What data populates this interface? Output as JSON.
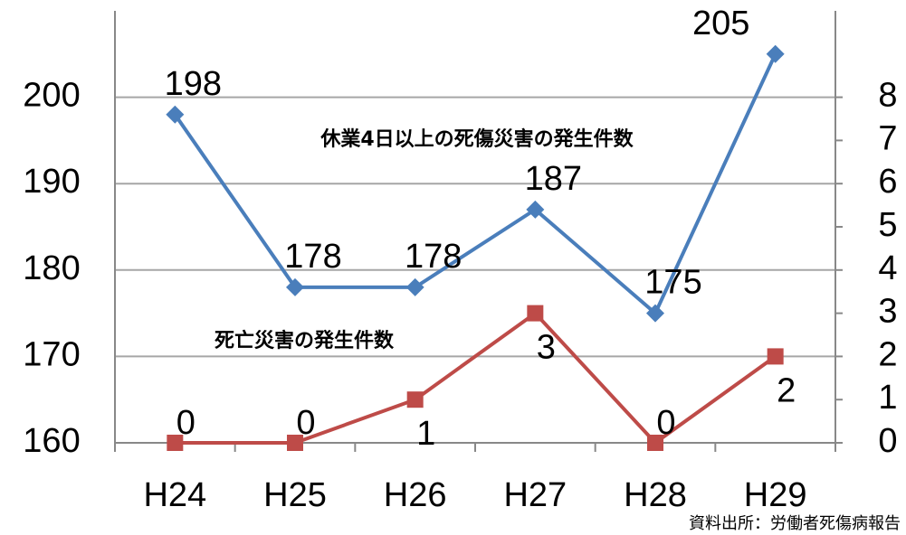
{
  "chart_data": {
    "type": "line",
    "categories": [
      "H24",
      "H25",
      "H26",
      "H27",
      "H28",
      "H29"
    ],
    "series": [
      {
        "name": "休業4日以上の死傷災害の発生件数",
        "color": "#4a7ebb",
        "values": [
          198,
          178,
          178,
          187,
          175,
          205
        ]
      },
      {
        "name": "死亡災害の発生件数",
        "color": "#be4b48",
        "values": [
          0,
          0,
          1,
          3,
          0,
          2
        ],
        "axis": "y2"
      }
    ],
    "ylim": [
      160,
      210
    ],
    "yticks": [
      160,
      170,
      180,
      190,
      200
    ],
    "y2lim": [
      0,
      10
    ],
    "y2ticks": [
      0,
      1,
      2,
      3,
      4,
      5,
      6,
      7,
      8
    ],
    "grid": true,
    "source": "資料出所：労働者死傷病報告"
  }
}
